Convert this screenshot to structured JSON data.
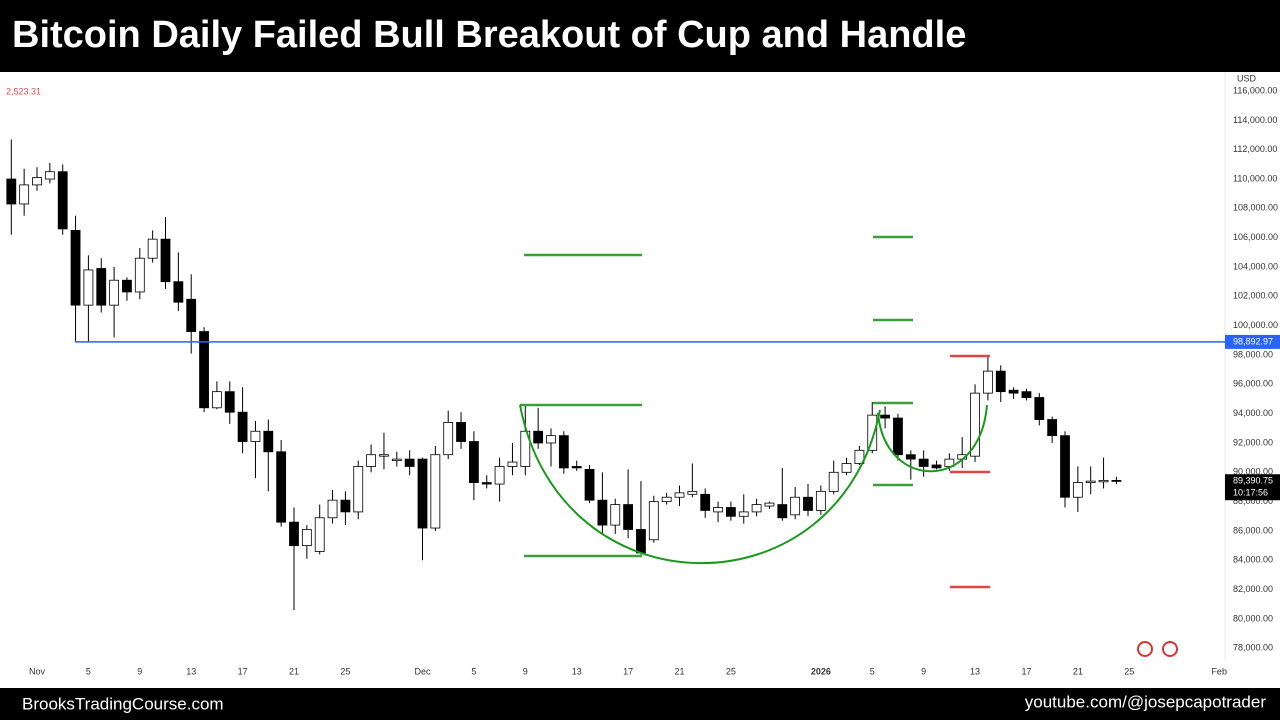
{
  "header": {
    "title": "Bitcoin Daily Failed Bull Breakout of Cup and Handle"
  },
  "chart_data": {
    "type": "candlestick",
    "currency": "USD",
    "indicator_label": "2,523.31",
    "up_color": "#ffffff",
    "down_color": "#000000",
    "outline_color": "#000000",
    "ylim": [
      77200,
      117300
    ],
    "yticks": [
      {
        "value": 78000,
        "label": "78,000.00"
      },
      {
        "value": 80000,
        "label": "80,000.00"
      },
      {
        "value": 82000,
        "label": "82,000.00"
      },
      {
        "value": 84000,
        "label": "84,000.00"
      },
      {
        "value": 86000,
        "label": "86,000.00"
      },
      {
        "value": 88000,
        "label": "88,000.00"
      },
      {
        "value": 90000,
        "label": "90,000.00"
      },
      {
        "value": 92000,
        "label": "92,000.00"
      },
      {
        "value": 94000,
        "label": "94,000.00"
      },
      {
        "value": 96000,
        "label": "96,000.00"
      },
      {
        "value": 98000,
        "label": "98,000.00"
      },
      {
        "value": 100000,
        "label": "100,000.00"
      },
      {
        "value": 102000,
        "label": "102,000.00"
      },
      {
        "value": 104000,
        "label": "104,000.00"
      },
      {
        "value": 106000,
        "label": "106,000.00"
      },
      {
        "value": 108000,
        "label": "108,000.00"
      },
      {
        "value": 110000,
        "label": "110,000.00"
      },
      {
        "value": 112000,
        "label": "112,000.00"
      },
      {
        "value": 114000,
        "label": "114,000.00"
      },
      {
        "value": 116000,
        "label": "116,000.00"
      }
    ],
    "grid": false,
    "price_line": {
      "value": 98892.97,
      "label": "98,892.97",
      "color": "#2962ff"
    },
    "last_price": {
      "value": 89390.75,
      "label": "89,390.75",
      "countdown": "10:17:56"
    },
    "categories": [
      null,
      null,
      "Nov",
      null,
      null,
      null,
      "5",
      null,
      null,
      null,
      "9",
      null,
      null,
      null,
      "13",
      null,
      null,
      null,
      "17",
      null,
      null,
      null,
      "21",
      null,
      null,
      null,
      "25",
      null,
      null,
      null,
      null,
      null,
      "Dec",
      null,
      null,
      null,
      "5",
      null,
      null,
      null,
      "9",
      null,
      null,
      null,
      "13",
      null,
      null,
      null,
      "17",
      null,
      null,
      null,
      "21",
      null,
      null,
      null,
      "25",
      null,
      null,
      null,
      null,
      null,
      null,
      "2026",
      null,
      null,
      null,
      "5",
      null,
      null,
      null,
      "9",
      null,
      null,
      null,
      "13",
      null,
      null,
      null,
      "17",
      null,
      null,
      null,
      "21",
      null,
      null,
      null,
      "25",
      null,
      null,
      null,
      null,
      null,
      null,
      "Feb"
    ],
    "open": [
      110000,
      108300,
      109600,
      110000,
      110500,
      106500,
      101400,
      103900,
      101400,
      103100,
      102300,
      104600,
      105900,
      103000,
      101800,
      99600,
      94400,
      95500,
      94100,
      92100,
      92800,
      91400,
      86600,
      85000,
      84600,
      86900,
      88100,
      87300,
      90400,
      91100,
      90800,
      90900,
      90900,
      86200,
      91200,
      93400,
      92100,
      89300,
      89200,
      90400,
      90400,
      92800,
      92000,
      92500,
      90400,
      90200,
      88100,
      86400,
      87800,
      86100,
      85400,
      88000,
      88300,
      88500,
      88500,
      87300,
      87600,
      87000,
      87300,
      87700,
      87800,
      87100,
      88300,
      87400,
      88700,
      90000,
      90600,
      91500,
      93900,
      93700,
      91200,
      90900,
      90500,
      90400,
      90900,
      91100,
      95400,
      96900,
      95600,
      95500,
      95100,
      93600,
      92500,
      88300,
      89300,
      89350,
      89450,
      null,
      null,
      null,
      null,
      null,
      null,
      null,
      null
    ],
    "high": [
      112700,
      110700,
      110800,
      111100,
      111000,
      107500,
      104800,
      104600,
      104000,
      103300,
      105300,
      106500,
      107400,
      105000,
      103500,
      99900,
      96200,
      96200,
      95800,
      93500,
      93600,
      92200,
      87600,
      86400,
      87800,
      88800,
      88700,
      90800,
      91900,
      92700,
      91400,
      91500,
      91000,
      91800,
      94200,
      94100,
      92800,
      89800,
      91000,
      92000,
      94600,
      94400,
      93000,
      92800,
      90800,
      90500,
      90000,
      88200,
      90200,
      89400,
      88400,
      88600,
      89100,
      90600,
      88900,
      88000,
      88000,
      88500,
      88200,
      88000,
      90300,
      89000,
      89200,
      89100,
      90800,
      91000,
      91800,
      94800,
      94500,
      94000,
      91500,
      91500,
      90800,
      91300,
      92400,
      96000,
      97900,
      97300,
      95800,
      95700,
      95400,
      93800,
      92800,
      90400,
      90400,
      91000,
      89700,
      null,
      null,
      null,
      null,
      null,
      null,
      null,
      null
    ],
    "low": [
      106200,
      107500,
      109200,
      109700,
      106200,
      98900,
      98900,
      100900,
      99200,
      101700,
      101800,
      104300,
      102500,
      101000,
      98100,
      94100,
      94300,
      93300,
      91300,
      89600,
      88700,
      86300,
      80600,
      84100,
      84400,
      86500,
      86400,
      86800,
      90000,
      90200,
      90400,
      89800,
      84000,
      86000,
      90900,
      91600,
      88100,
      88900,
      88000,
      89800,
      89800,
      91600,
      90400,
      89900,
      90100,
      87900,
      85800,
      85800,
      85500,
      84400,
      85200,
      87800,
      87700,
      88300,
      86900,
      86600,
      86700,
      86500,
      87000,
      87500,
      86700,
      86800,
      87000,
      87100,
      88500,
      89800,
      90500,
      91300,
      93000,
      90800,
      89500,
      89700,
      90200,
      90100,
      90300,
      90700,
      94900,
      94800,
      95000,
      94900,
      93200,
      92000,
      87600,
      87300,
      88500,
      88900,
      89200,
      null,
      null,
      null,
      null,
      null,
      null,
      null,
      null
    ],
    "close": [
      108300,
      109600,
      110100,
      110500,
      106600,
      101400,
      103800,
      101400,
      103100,
      102300,
      104600,
      105900,
      103000,
      101600,
      99600,
      94400,
      95500,
      94100,
      92100,
      92800,
      91400,
      86600,
      85000,
      86100,
      86900,
      88100,
      87300,
      90400,
      91200,
      91200,
      90900,
      90400,
      86200,
      91200,
      93400,
      92100,
      89300,
      89200,
      90400,
      90700,
      92800,
      92000,
      92500,
      90300,
      90300,
      88100,
      86400,
      87800,
      86100,
      84500,
      88000,
      88300,
      88600,
      88700,
      87400,
      87600,
      87000,
      87300,
      87800,
      87900,
      86900,
      88300,
      87400,
      88700,
      90000,
      90600,
      91500,
      93900,
      93700,
      91200,
      90900,
      90400,
      90300,
      90900,
      91200,
      95400,
      96900,
      95500,
      95400,
      95100,
      93600,
      92500,
      88300,
      89300,
      89400,
      89450,
      89390.75,
      null,
      null,
      null,
      null,
      null,
      null,
      null,
      null
    ]
  },
  "footer": {
    "left": "BrooksTradingCourse.com",
    "right": "youtube.com/@josepcapotrader"
  }
}
